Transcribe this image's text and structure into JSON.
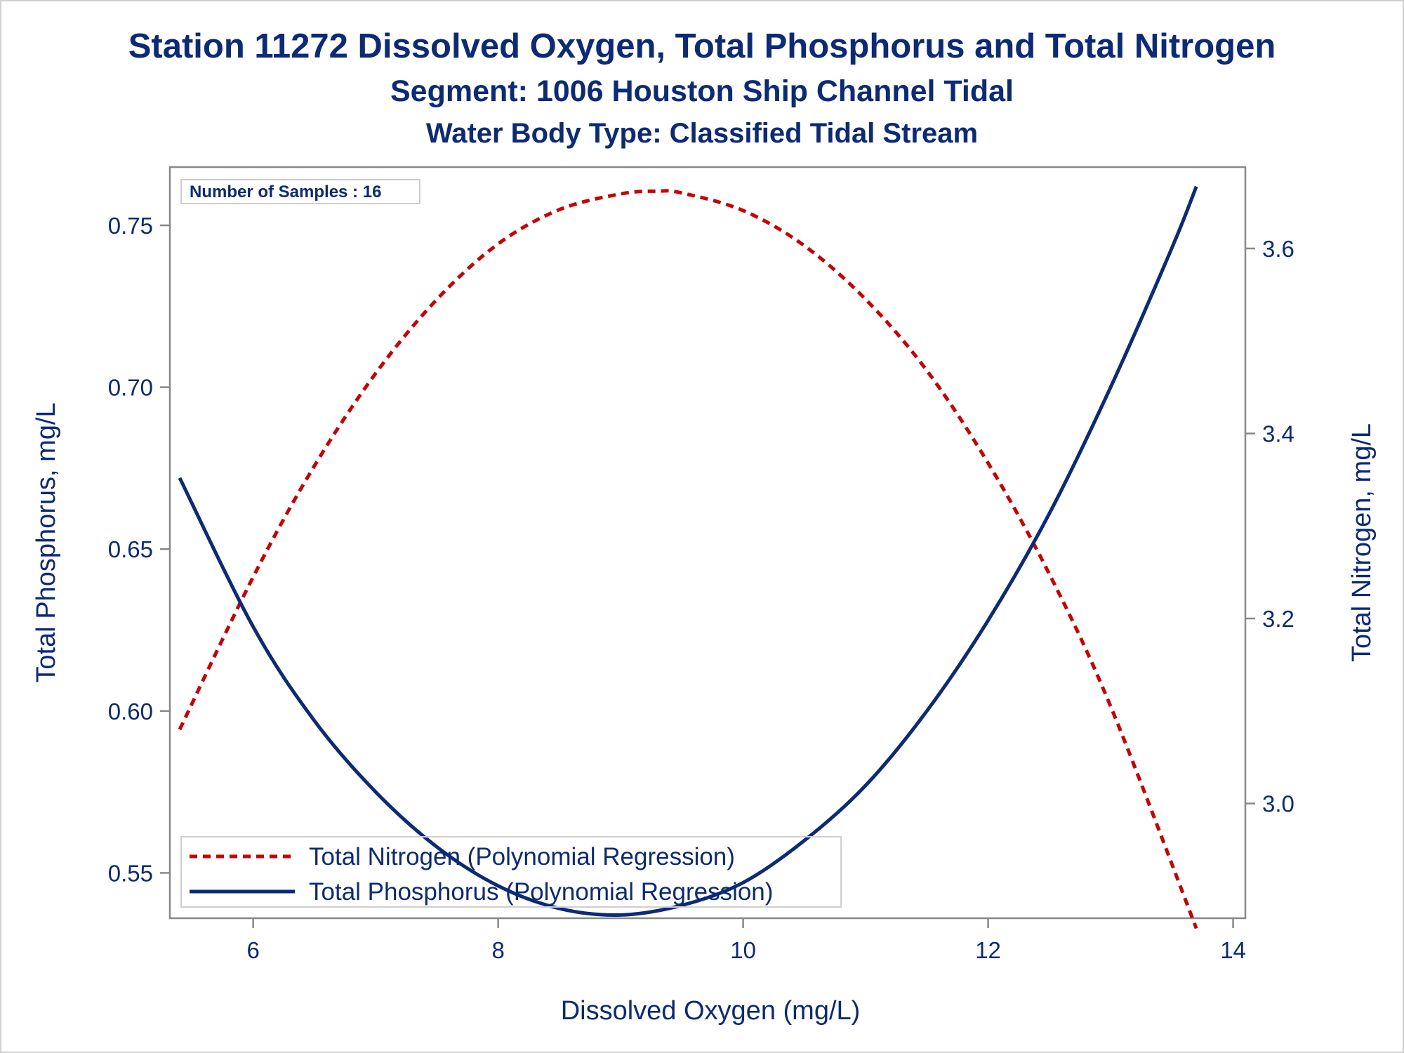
{
  "titles": {
    "line1": "Station 11272  Dissolved Oxygen, Total Phosphorus and Total Nitrogen",
    "line2": "Segment: 1006  Houston Ship Channel Tidal",
    "line3": "Water Body Type: Classified Tidal Stream"
  },
  "inset_label": "Number of Samples : 16",
  "chart_data": {
    "type": "line",
    "xlabel": "Dissolved Oxygen (mg/L)",
    "ylabel": "Total Phosphorus, mg/L",
    "y2label": "Total Nitrogen, mg/L",
    "xlim": [
      5.32,
      14.1
    ],
    "ylim": [
      0.536,
      0.768
    ],
    "y2lim": [
      2.876,
      3.688
    ],
    "xticks": [
      "6",
      "8",
      "10",
      "12",
      "14"
    ],
    "yticks": [
      "0.55",
      "0.60",
      "0.65",
      "0.70",
      "0.75"
    ],
    "y2ticks": [
      "3.0",
      "3.2",
      "3.4",
      "3.6"
    ],
    "grid": false,
    "legend_position": "bottom-left",
    "series": [
      {
        "name": "Total Nitrogen (Polynomial Regression)",
        "axis": "right",
        "color": "#cc0000",
        "style": "dashed",
        "x": [
          5.4,
          6.0,
          6.5,
          7.0,
          7.5,
          8.0,
          8.5,
          9.0,
          9.3,
          9.5,
          10.0,
          10.5,
          11.0,
          11.5,
          12.0,
          12.5,
          13.0,
          13.7
        ],
        "y": [
          3.08,
          3.245,
          3.365,
          3.465,
          3.545,
          3.605,
          3.642,
          3.659,
          3.662,
          3.66,
          3.641,
          3.603,
          3.545,
          3.468,
          3.368,
          3.248,
          3.105,
          2.865
        ]
      },
      {
        "name": "Total Phosphorus (Polynomial Regression)",
        "axis": "left",
        "color": "#0b2a78",
        "style": "solid",
        "x": [
          5.4,
          6.0,
          6.5,
          7.0,
          7.5,
          8.0,
          8.5,
          9.0,
          9.5,
          10.0,
          10.5,
          11.0,
          11.5,
          12.0,
          12.5,
          13.0,
          13.5,
          13.7
        ],
        "y": [
          0.672,
          0.626,
          0.597,
          0.575,
          0.558,
          0.546,
          0.539,
          0.537,
          0.54,
          0.547,
          0.56,
          0.577,
          0.6,
          0.628,
          0.661,
          0.7,
          0.743,
          0.762
        ]
      }
    ]
  }
}
